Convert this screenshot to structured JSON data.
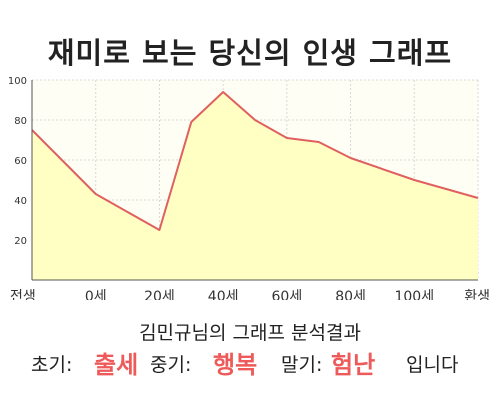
{
  "title": "재미로 보는 당신의 인생 그래프",
  "chart_data": {
    "type": "area",
    "x_tick_labels": [
      "전생",
      "0세",
      "20세",
      "40세",
      "60세",
      "80세",
      "100세",
      "환생"
    ],
    "x": [
      -20,
      0,
      20,
      30,
      40,
      50,
      60,
      70,
      80,
      100,
      120
    ],
    "y": [
      75,
      43,
      25,
      79,
      94,
      80,
      71,
      69,
      61,
      50,
      41
    ],
    "y_ticks": [
      20,
      40,
      60,
      80,
      100
    ],
    "ylim": [
      0,
      100
    ],
    "xlim": [
      -20,
      120
    ],
    "line_color": "#e06060",
    "fill_color": "#ffffc4",
    "grid": true
  },
  "result": {
    "subtitle": "김민규님의 그래프 분석결과",
    "early_label": "초기:",
    "early_value": "출세",
    "mid_label": "중기:",
    "mid_value": "행복",
    "late_label": "말기:",
    "late_value": "험난",
    "ending": "입니다"
  },
  "colors": {
    "highlight": "#ee5a5a"
  }
}
